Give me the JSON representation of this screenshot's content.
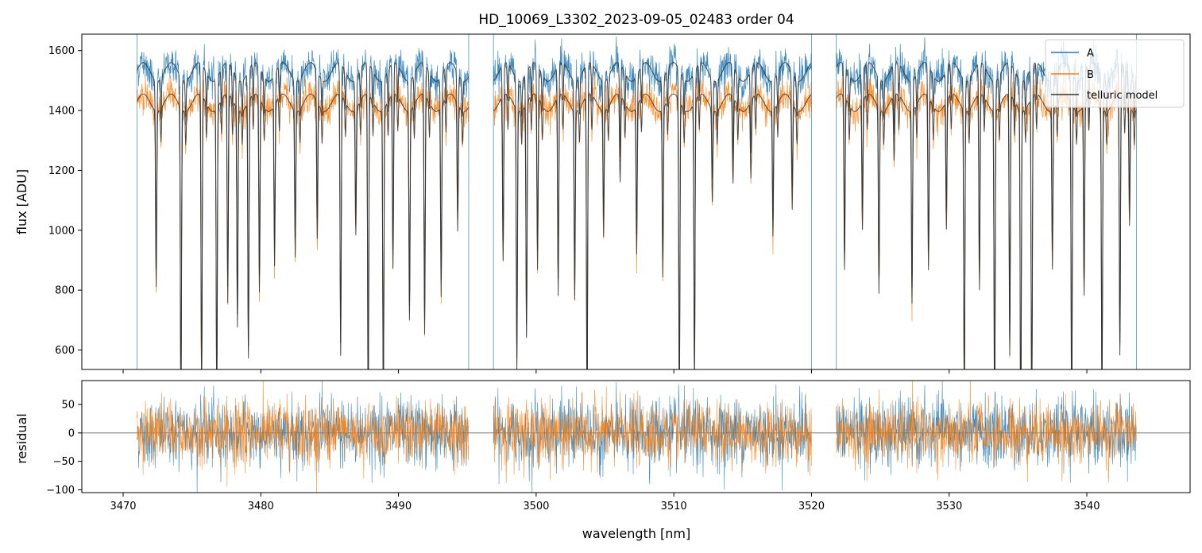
{
  "chart_data": {
    "type": "line",
    "title": "HD_10069_L3302_2023-09-05_02483  order 04",
    "xlabel": "wavelength [nm]",
    "xlim": [
      3467,
      3547.5
    ],
    "x_ticks": [
      3470,
      3480,
      3490,
      3500,
      3510,
      3520,
      3530,
      3540
    ],
    "x_tick_labels": [
      "3470",
      "3480",
      "3490",
      "3500",
      "3510",
      "3520",
      "3530",
      "3540"
    ],
    "segments": [
      [
        3471.0,
        3495.1
      ],
      [
        3496.9,
        3520.0
      ],
      [
        3521.8,
        3543.6
      ]
    ],
    "panels": [
      {
        "name": "flux",
        "ylabel": "flux [ADU]",
        "ylim": [
          535,
          1655
        ],
        "y_ticks": [
          600,
          800,
          1000,
          1200,
          1400,
          1600
        ],
        "y_tick_labels": [
          "600",
          "800",
          "1000",
          "1200",
          "1400",
          "1600"
        ],
        "continuum_levels": {
          "A": 1560,
          "B": 1455
        },
        "telluric_absorption_centers": [
          3472.4,
          3474.2,
          3475.7,
          3476.8,
          3477.6,
          3478.3,
          3479.1,
          3479.9,
          3481.0,
          3482.5,
          3484.1,
          3485.8,
          3486.9,
          3487.8,
          3488.9,
          3489.6,
          3490.8,
          3491.9,
          3493.1,
          3494.3,
          3497.6,
          3498.6,
          3499.3,
          3500.1,
          3501.6,
          3502.8,
          3503.7,
          3504.9,
          3506.1,
          3507.3,
          3509.2,
          3510.4,
          3511.5,
          3512.8,
          3514.3,
          3515.6,
          3517.2,
          3518.6,
          3522.4,
          3523.7,
          3524.9,
          3526.0,
          3527.3,
          3528.5,
          3529.8,
          3531.1,
          3532.2,
          3533.3,
          3534.4,
          3535.2,
          3536.0,
          3537.5,
          3538.9,
          3539.8,
          3541.1,
          3542.4,
          3543.1
        ],
        "telluric_absorption_depths": [
          0.42,
          0.72,
          0.68,
          0.7,
          0.48,
          0.52,
          0.6,
          0.45,
          0.38,
          0.35,
          0.32,
          0.6,
          0.3,
          0.75,
          0.72,
          0.4,
          0.5,
          0.55,
          0.45,
          0.3,
          0.38,
          0.62,
          0.55,
          0.4,
          0.46,
          0.45,
          0.74,
          0.3,
          0.2,
          0.35,
          0.4,
          0.72,
          0.65,
          0.22,
          0.2,
          0.18,
          0.3,
          0.25,
          0.4,
          0.3,
          0.44,
          0.15,
          0.46,
          0.4,
          0.3,
          0.72,
          0.45,
          0.75,
          0.6,
          0.78,
          0.75,
          0.38,
          0.76,
          0.45,
          0.7,
          0.6,
          0.28
        ],
        "series": [
          {
            "name": "A",
            "color": "#1f77b4",
            "noise_sigma": 30
          },
          {
            "name": "B",
            "color": "#ff7f0e",
            "noise_sigma": 28
          },
          {
            "name": "telluric model",
            "color": "#333333"
          }
        ]
      },
      {
        "name": "residual",
        "ylabel": "residual",
        "ylim": [
          -105,
          92
        ],
        "y_ticks": [
          -100,
          -50,
          0,
          50
        ],
        "y_tick_labels": [
          "−100",
          "−50",
          "0",
          "50"
        ],
        "zero_line": 0,
        "series": [
          {
            "name": "A",
            "color": "#1f77b4",
            "noise_sigma": 30
          },
          {
            "name": "B",
            "color": "#ff7f0e",
            "noise_sigma": 28
          }
        ]
      }
    ],
    "legend": {
      "placement": "top-right",
      "entries": [
        {
          "label": "A",
          "color": "#1f77b4"
        },
        {
          "label": "B",
          "color": "#ff7f0e"
        },
        {
          "label": "telluric model",
          "color": "#333333"
        }
      ]
    }
  }
}
